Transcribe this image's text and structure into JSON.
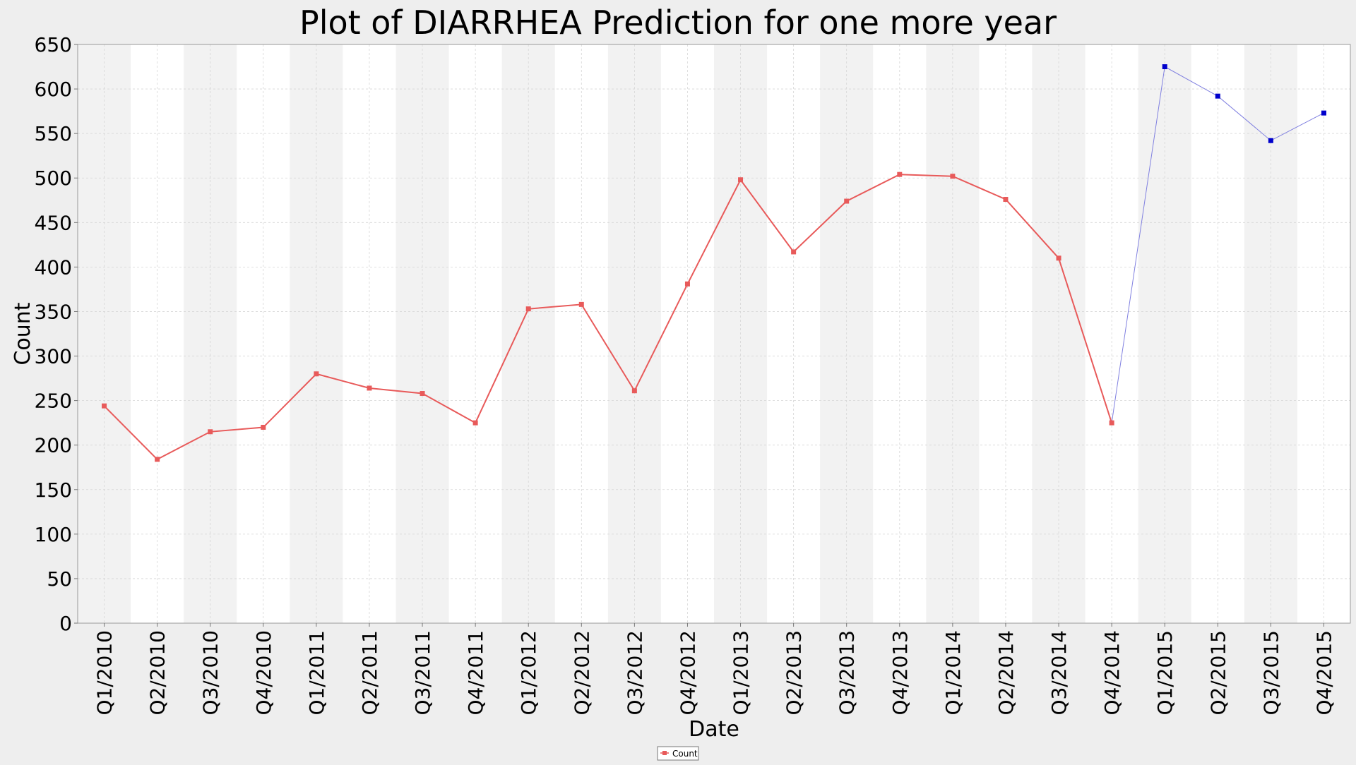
{
  "chart_data": {
    "type": "line",
    "title": "Plot of DIARRHEA Prediction for one more year",
    "xlabel": "Date",
    "ylabel": "Count",
    "ylim": [
      0,
      650
    ],
    "yticks": [
      0,
      50,
      100,
      150,
      200,
      250,
      300,
      350,
      400,
      450,
      500,
      550,
      600,
      650
    ],
    "grid": true,
    "alternating_column_bands": true,
    "legend_position": "bottom-center",
    "categories": [
      "Q1/2010",
      "Q2/2010",
      "Q3/2010",
      "Q4/2010",
      "Q1/2011",
      "Q2/2011",
      "Q3/2011",
      "Q4/2011",
      "Q1/2012",
      "Q2/2012",
      "Q3/2012",
      "Q4/2012",
      "Q1/2013",
      "Q2/2013",
      "Q3/2013",
      "Q4/2013",
      "Q1/2014",
      "Q2/2014",
      "Q3/2014",
      "Q4/2014",
      "Q1/2015",
      "Q2/2015",
      "Q3/2015",
      "Q4/2015"
    ],
    "series": [
      {
        "name": "Count",
        "color": "#e85a5a",
        "values": [
          244,
          184,
          215,
          220,
          280,
          264,
          258,
          225,
          353,
          358,
          261,
          381,
          498,
          417,
          474,
          504,
          502,
          476,
          410,
          225,
          null,
          null,
          null,
          null
        ]
      },
      {
        "name": "",
        "color": "#0000cc",
        "line_color": "#8080e0",
        "values": [
          null,
          null,
          null,
          null,
          null,
          null,
          null,
          null,
          null,
          null,
          null,
          null,
          null,
          null,
          null,
          null,
          null,
          null,
          null,
          225,
          625,
          592,
          542,
          573
        ]
      }
    ]
  }
}
